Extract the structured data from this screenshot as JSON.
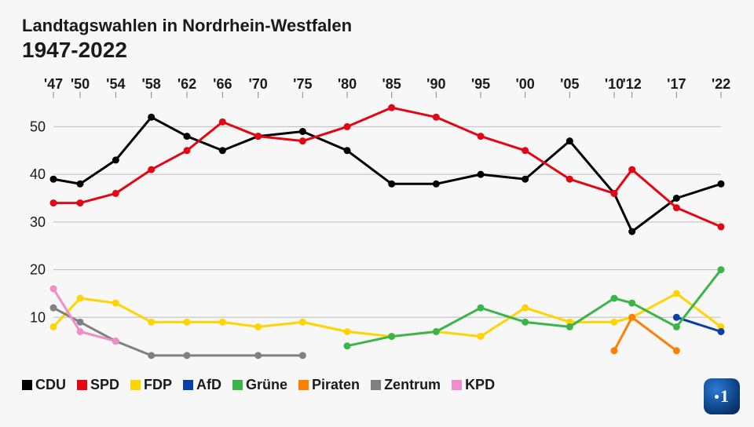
{
  "title": "Landtagswahlen in Nordrhein-Westfalen",
  "subtitle": "1947-2022",
  "chart": {
    "type": "line",
    "background_color": "#f7f7f7",
    "grid_color": "#bdbdbd",
    "axis_color": "#888888",
    "line_width": 3,
    "marker_radius": 4.5,
    "text_color": "#1a1a1a",
    "tick_fontsize": 18,
    "title_fontsize": 22,
    "subtitle_fontsize": 28,
    "legend_fontsize": 18,
    "legend_swatch_size": 13,
    "x_values": [
      1947,
      1950,
      1954,
      1958,
      1962,
      1966,
      1970,
      1975,
      1980,
      1985,
      1990,
      1995,
      2000,
      2005,
      2010,
      2012,
      2017,
      2022
    ],
    "xticks": [
      "'47",
      "'50",
      "'54",
      "'58",
      "'62",
      "'66",
      "'70",
      "'75",
      "'80",
      "'85",
      "'90",
      "'95",
      "'00",
      "'05",
      "'10",
      "'12",
      "'17",
      "'22"
    ],
    "ylim": [
      0,
      56
    ],
    "yticks": [
      10,
      20,
      30,
      40,
      50
    ],
    "series": [
      {
        "name": "CDU",
        "color": "#000000",
        "x": [
          1947,
          1950,
          1954,
          1958,
          1962,
          1966,
          1970,
          1975,
          1980,
          1985,
          1990,
          1995,
          2000,
          2005,
          2010,
          2012,
          2017,
          2022
        ],
        "y": [
          39,
          38,
          43,
          52,
          48,
          45,
          48,
          49,
          45,
          38,
          38,
          40,
          39,
          47,
          36,
          28,
          35,
          38
        ]
      },
      {
        "name": "SPD",
        "color": "#e30613",
        "x": [
          1947,
          1950,
          1954,
          1958,
          1962,
          1966,
          1970,
          1975,
          1980,
          1985,
          1990,
          1995,
          2000,
          2005,
          2010,
          2012,
          2017,
          2022
        ],
        "y": [
          34,
          34,
          36,
          41,
          45,
          51,
          48,
          47,
          50,
          54,
          52,
          48,
          45,
          39,
          36,
          41,
          33,
          29
        ]
      },
      {
        "name": "FDP",
        "color": "#ffd400",
        "x": [
          1947,
          1950,
          1954,
          1958,
          1962,
          1966,
          1970,
          1975,
          1980,
          1985,
          1990,
          1995,
          2000,
          2005,
          2010,
          2012,
          2017,
          2022
        ],
        "y": [
          8,
          14,
          13,
          9,
          9,
          9,
          8,
          9,
          7,
          6,
          7,
          6,
          12,
          9,
          9,
          10,
          15,
          8
        ]
      },
      {
        "name": "AfD",
        "color": "#0b3fa8",
        "x": [
          2017,
          2022
        ],
        "y": [
          10,
          7
        ]
      },
      {
        "name": "Grüne",
        "color": "#3bb54a",
        "x": [
          1980,
          1985,
          1990,
          1995,
          2000,
          2005,
          2010,
          2012,
          2017,
          2022
        ],
        "y": [
          4,
          6,
          7,
          12,
          9,
          8,
          14,
          13,
          8,
          20
        ]
      },
      {
        "name": "Piraten",
        "color": "#ff7f00",
        "x": [
          2010,
          2012,
          2017
        ],
        "y": [
          3,
          10,
          3
        ]
      },
      {
        "name": "Zentrum",
        "color": "#808080",
        "x": [
          1947,
          1950,
          1954,
          1958,
          1962,
          1970,
          1975
        ],
        "y": [
          12,
          9,
          5,
          2,
          2,
          2,
          2
        ]
      },
      {
        "name": "KPD",
        "color": "#f08ec7",
        "x": [
          1947,
          1950,
          1954
        ],
        "y": [
          16,
          7,
          5
        ]
      }
    ]
  },
  "logo": {
    "label": "1",
    "gradient_from": "#2a7bd6",
    "gradient_to": "#062451",
    "text_color": "#ffffff"
  }
}
